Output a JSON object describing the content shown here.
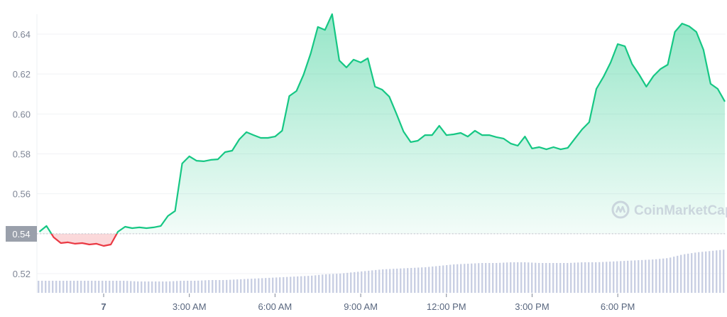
{
  "chart_data": {
    "type": "area",
    "title": "",
    "xlabel": "",
    "ylabel": "",
    "ylim": [
      0.515,
      0.655
    ],
    "yticks": [
      "0.52",
      "0.54",
      "0.56",
      "0.58",
      "0.60",
      "0.62",
      "0.64"
    ],
    "xticks": [
      {
        "label": "7",
        "time": "00:00"
      },
      {
        "label": "3:00 AM",
        "time": "03:00"
      },
      {
        "label": "6:00 AM",
        "time": "06:00"
      },
      {
        "label": "9:00 AM",
        "time": "09:00"
      },
      {
        "label": "12:00 PM",
        "time": "12:00"
      },
      {
        "label": "3:00 PM",
        "time": "15:00"
      },
      {
        "label": "6:00 PM",
        "time": "18:00"
      }
    ],
    "grid": true,
    "reference_price": 0.54,
    "reference_label": "0.54",
    "colors": {
      "up": "#16c784",
      "down": "#ea3943",
      "volume": "#c9cfe3",
      "label_bg": "#9aa0ab"
    },
    "series": [
      {
        "times": [
          "21:45",
          "22:00",
          "22:15",
          "22:30",
          "22:45",
          "23:00",
          "23:15",
          "23:30",
          "23:45",
          "00:00",
          "00:15",
          "00:30",
          "00:45",
          "01:00",
          "01:15",
          "01:30",
          "01:45",
          "02:00",
          "02:15",
          "02:30",
          "02:45",
          "03:00",
          "03:15",
          "03:30",
          "03:45",
          "04:00",
          "04:15",
          "04:30",
          "04:45",
          "05:00",
          "05:15",
          "05:30",
          "05:45",
          "06:00",
          "06:15",
          "06:30",
          "06:45",
          "07:00",
          "07:15",
          "07:30",
          "07:45",
          "08:00",
          "08:15",
          "08:30",
          "08:45",
          "09:00",
          "09:15",
          "09:30",
          "09:45",
          "10:00",
          "10:15",
          "10:30",
          "10:45",
          "11:00",
          "11:15",
          "11:30",
          "11:45",
          "12:00",
          "12:15",
          "12:30",
          "12:45",
          "13:00",
          "13:15",
          "13:30",
          "13:45",
          "14:00",
          "14:15",
          "14:30",
          "14:45",
          "15:00",
          "15:15",
          "15:30",
          "15:45",
          "16:00",
          "16:15",
          "16:30",
          "16:45",
          "17:00",
          "17:15",
          "17:30",
          "17:45",
          "18:00",
          "18:15",
          "18:30",
          "18:45",
          "19:00",
          "19:15",
          "19:30",
          "19:45",
          "20:00",
          "20:15",
          "20:30",
          "20:45",
          "21:00",
          "21:15",
          "21:30",
          "21:45"
        ],
        "values": [
          0.541,
          0.5439,
          0.5382,
          0.5353,
          0.5357,
          0.535,
          0.5353,
          0.5346,
          0.535,
          0.5339,
          0.5346,
          0.541,
          0.5435,
          0.5428,
          0.5432,
          0.5428,
          0.5432,
          0.5439,
          0.5489,
          0.5514,
          0.5752,
          0.5788,
          0.5766,
          0.5763,
          0.577,
          0.5773,
          0.5809,
          0.5816,
          0.5873,
          0.5909,
          0.5894,
          0.588,
          0.588,
          0.5887,
          0.5916,
          0.609,
          0.6115,
          0.6197,
          0.6304,
          0.6436,
          0.6421,
          0.65,
          0.6268,
          0.6233,
          0.6272,
          0.6258,
          0.6279,
          0.6137,
          0.6122,
          0.6087,
          0.6001,
          0.5912,
          0.5859,
          0.5866,
          0.5894,
          0.5894,
          0.5941,
          0.5894,
          0.5898,
          0.5905,
          0.5887,
          0.5916,
          0.5894,
          0.5894,
          0.5884,
          0.5877,
          0.5852,
          0.5841,
          0.5887,
          0.5827,
          0.5834,
          0.5823,
          0.5834,
          0.5823,
          0.583,
          0.5877,
          0.5923,
          0.5959,
          0.6126,
          0.6186,
          0.6258,
          0.635,
          0.6339,
          0.625,
          0.6197,
          0.6137,
          0.619,
          0.6226,
          0.6247,
          0.6411,
          0.6453,
          0.6439,
          0.6411,
          0.6322,
          0.6151,
          0.6126,
          0.6062
        ]
      }
    ],
    "volume_relative": [
      17,
      17,
      17,
      17,
      17,
      17,
      17,
      16,
      16,
      16,
      17,
      17,
      18,
      18,
      19,
      20,
      21,
      22,
      23,
      24,
      26,
      27,
      29,
      31,
      33,
      34,
      35,
      36,
      38,
      40,
      41,
      42,
      42,
      43,
      43,
      42,
      42,
      42,
      43,
      43,
      44,
      45,
      46,
      47,
      49,
      54,
      57,
      59,
      61
    ]
  },
  "watermark": {
    "text": "CoinMarketCap",
    "icon": "coinmarketcap-logo-icon"
  }
}
